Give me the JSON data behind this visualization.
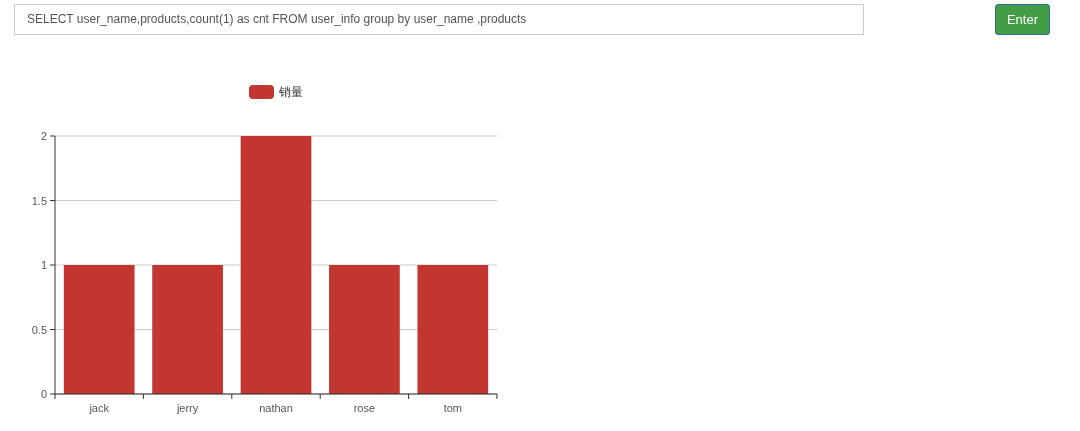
{
  "chart_data": {
    "type": "bar",
    "annotations": [
      "SELECT user_name,products,count(1) as cnt FROM user_info group by user_name ,products",
      "Enter"
    ],
    "categories": [
      "jack",
      "jerry",
      "nathan",
      "rose",
      "tom"
    ],
    "series": [
      {
        "name": "销量",
        "color": "#c23531",
        "values": [
          1,
          1,
          2,
          1,
          1
        ]
      }
    ],
    "ylim": [
      0,
      2
    ],
    "yticks": [
      0,
      0.5,
      1,
      1.5,
      2
    ],
    "grid": "y",
    "legend": "top"
  }
}
